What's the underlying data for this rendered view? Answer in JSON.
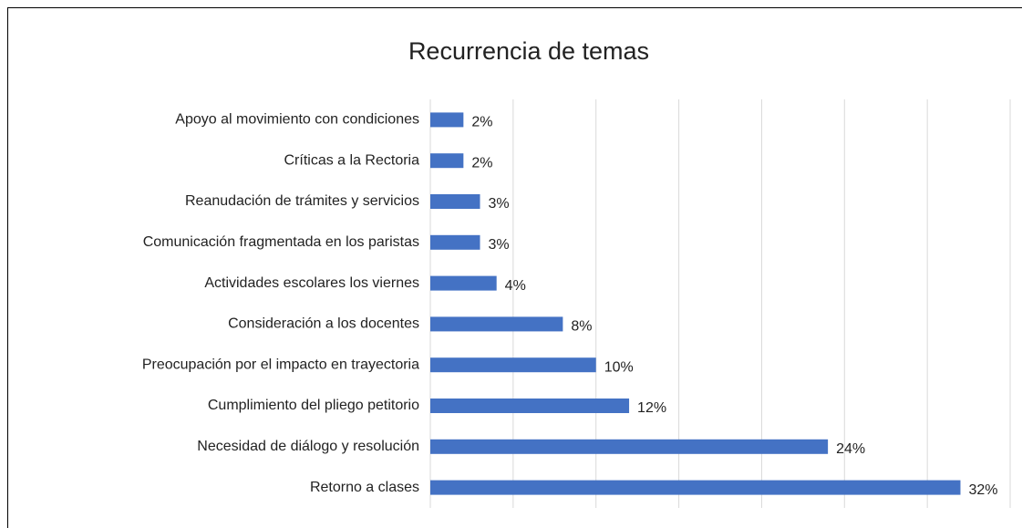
{
  "chart_data": {
    "type": "bar",
    "orientation": "horizontal",
    "title": "Recurrencia de temas",
    "categories": [
      "Apoyo al movimiento con condiciones",
      "Críticas a la Rectoria",
      "Reanudación de trámites y servicios",
      "Comunicación fragmentada en los paristas",
      "Actividades escolares los viernes",
      "Consideración a los docentes",
      "Preocupación por el impacto en trayectoria",
      "Cumplimiento del pliego petitorio",
      "Necesidad de diálogo y resolución",
      "Retorno a clases"
    ],
    "values": [
      2,
      2,
      3,
      3,
      4,
      8,
      10,
      12,
      24,
      32
    ],
    "value_labels": [
      "2%",
      "2%",
      "3%",
      "3%",
      "4%",
      "8%",
      "10%",
      "12%",
      "24%",
      "32%"
    ],
    "color": "#4472c4",
    "xlim": [
      0,
      35
    ],
    "xticks": [
      0,
      5,
      10,
      15,
      20,
      25,
      30,
      35
    ],
    "grid": true
  }
}
